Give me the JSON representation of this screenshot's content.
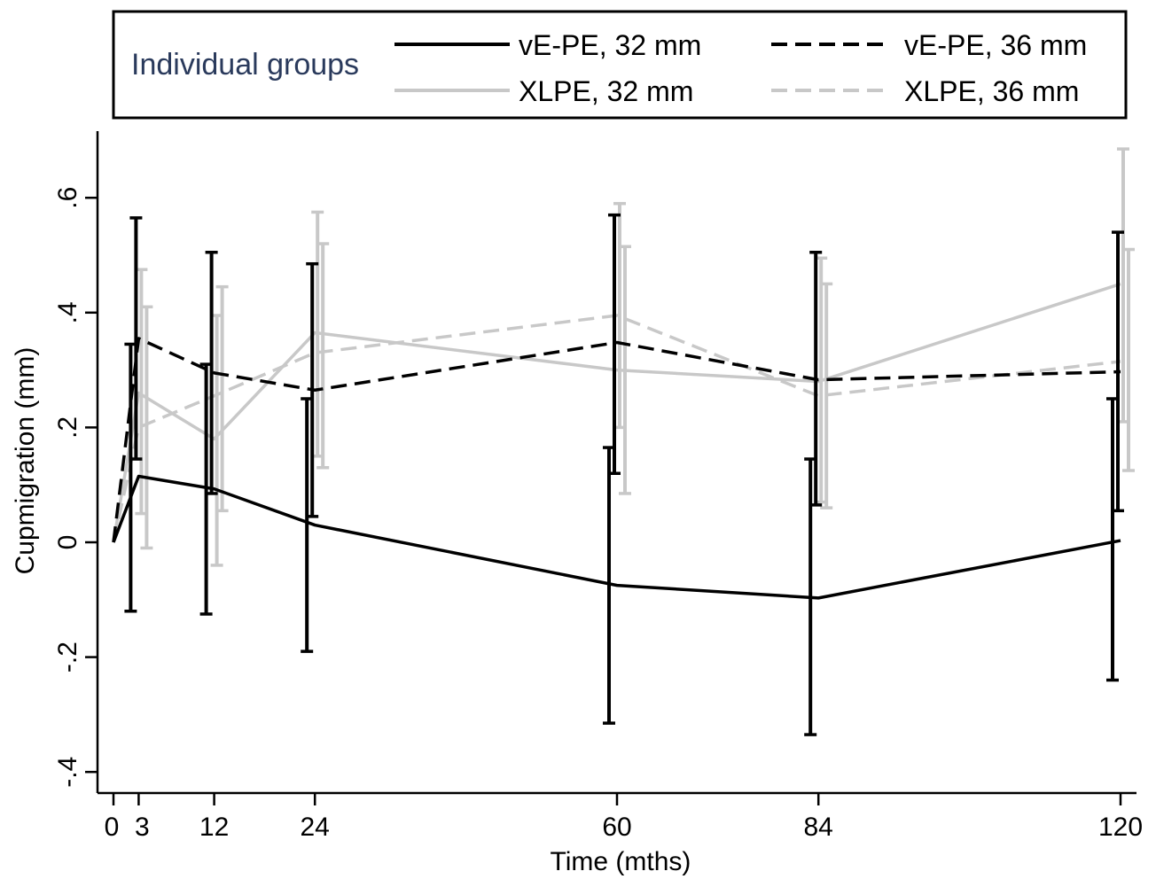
{
  "chart_data": {
    "type": "line",
    "xlabel": "Time (mths)",
    "ylabel": "Cupmigration (mm)",
    "x": [
      0,
      3,
      12,
      24,
      60,
      84,
      120
    ],
    "xticks": [
      "0",
      "3",
      "12",
      "24",
      "60",
      "84",
      "120"
    ],
    "yticks": [
      "-.4",
      "-.2",
      "0",
      ".2",
      ".4",
      ".6"
    ],
    "ytick_values": [
      -0.4,
      -0.2,
      0,
      0.2,
      0.4,
      0.6
    ],
    "xlim": [
      0,
      120
    ],
    "ylim": [
      -0.43,
      0.71
    ],
    "legend": {
      "title": "Individual groups",
      "position": "top"
    },
    "series": [
      {
        "name": "vE-PE, 32 mm",
        "color": "#000000",
        "dash": "solid",
        "values": [
          0,
          0.115,
          0.093,
          0.03,
          -0.075,
          -0.097,
          0.003
        ],
        "lower": [
          null,
          -0.12,
          -0.125,
          -0.19,
          -0.315,
          -0.335,
          -0.24
        ],
        "upper": [
          null,
          0.345,
          0.31,
          0.25,
          0.165,
          0.145,
          0.25
        ]
      },
      {
        "name": "vE-PE, 36 mm",
        "color": "#000000",
        "dash": "dashed",
        "values": [
          0,
          0.355,
          0.295,
          0.265,
          0.348,
          0.283,
          0.297
        ],
        "lower": [
          null,
          0.145,
          0.085,
          0.045,
          0.12,
          0.065,
          0.055
        ],
        "upper": [
          null,
          0.565,
          0.505,
          0.485,
          0.57,
          0.505,
          0.54
        ]
      },
      {
        "name": "XLPE, 32 mm",
        "color": "#c8c8c8",
        "dash": "solid",
        "values": [
          0,
          0.26,
          0.18,
          0.365,
          0.3,
          0.28,
          0.45
        ],
        "lower": [
          null,
          0.05,
          -0.04,
          0.15,
          0.2,
          0.07,
          0.21
        ],
        "upper": [
          null,
          0.475,
          0.395,
          0.575,
          0.59,
          0.495,
          0.685
        ]
      },
      {
        "name": "XLPE, 36 mm",
        "color": "#c8c8c8",
        "dash": "dashed",
        "values": [
          0,
          0.2,
          0.255,
          0.33,
          0.395,
          0.255,
          0.315
        ],
        "lower": [
          null,
          -0.01,
          0.055,
          0.13,
          0.085,
          0.06,
          0.125
        ],
        "upper": [
          null,
          0.41,
          0.445,
          0.52,
          0.515,
          0.45,
          0.51
        ]
      }
    ]
  }
}
